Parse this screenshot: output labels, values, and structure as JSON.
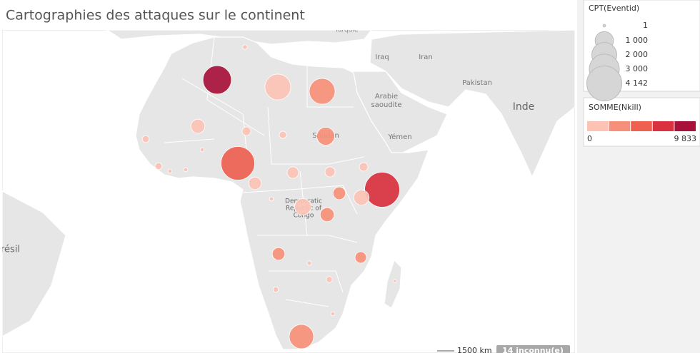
{
  "title": "Cartographies des attaques sur le continent",
  "map": {
    "labels": [
      "Turquie",
      "Iraq",
      "Iran",
      "Arabie",
      "saoudite",
      "Yémen",
      "Pakistan",
      "Inde",
      "Brésil",
      "Soudan",
      "Democratic",
      "Republic of",
      "Congo"
    ],
    "scale_label": "1500 km",
    "unknown_label": "14 inconnu(e)"
  },
  "size_legend": {
    "title": "CPT(Eventid)",
    "ticks": [
      1,
      {
        "value": 1000,
        "label": "1 000"
      },
      {
        "value": 2000,
        "label": "2 000"
      },
      {
        "value": 3000,
        "label": "3 000"
      },
      {
        "value": 4142,
        "label": "4 142"
      }
    ]
  },
  "color_legend": {
    "title": "SOMME(Nkill)",
    "min": 0,
    "max": {
      "value": 9833,
      "label": "9 833"
    },
    "colors": [
      "#fcc3b5",
      "#f7907a",
      "#ee6150",
      "#d9313f",
      "#a8113a"
    ]
  },
  "bubbles": [
    {
      "count": 2650,
      "nkill": 9000
    },
    {
      "count": 2150,
      "nkill": 1200
    },
    {
      "count": 2150,
      "nkill": 3000
    },
    {
      "count": 3800,
      "nkill": 5200
    },
    {
      "count": 4142,
      "nkill": 7600
    },
    {
      "count": 950,
      "nkill": 3500
    },
    {
      "count": 540,
      "nkill": 900
    },
    {
      "count": 160,
      "nkill": 1500
    },
    {
      "count": 100,
      "nkill": 600
    },
    {
      "count": 660,
      "nkill": 1200
    },
    {
      "count": 800,
      "nkill": 1500
    },
    {
      "count": 540,
      "nkill": 3000
    },
    {
      "count": 420,
      "nkill": 3300
    },
    {
      "count": 160,
      "nkill": 1100
    },
    {
      "count": 330,
      "nkill": 900
    },
    {
      "count": 240,
      "nkill": 800
    },
    {
      "count": 420,
      "nkill": 1300
    },
    {
      "count": 420,
      "nkill": 3200
    },
    {
      "count": 330,
      "nkill": 3500
    },
    {
      "count": 1900,
      "nkill": 3400
    },
    {
      "count": 90,
      "nkill": 1500
    },
    {
      "count": 90,
      "nkill": 1600
    },
    {
      "count": 15,
      "nkill": 900
    },
    {
      "count": 15,
      "nkill": 900
    },
    {
      "count": 15,
      "nkill": 600
    },
    {
      "count": 60,
      "nkill": 1200
    },
    {
      "count": 40,
      "nkill": 1100
    },
    {
      "count": 20,
      "nkill": 800
    },
    {
      "count": 25,
      "nkill": 1000
    },
    {
      "count": 15,
      "nkill": 1200
    },
    {
      "count": 15,
      "nkill": 900
    },
    {
      "count": 5,
      "nkill": 500
    }
  ]
}
